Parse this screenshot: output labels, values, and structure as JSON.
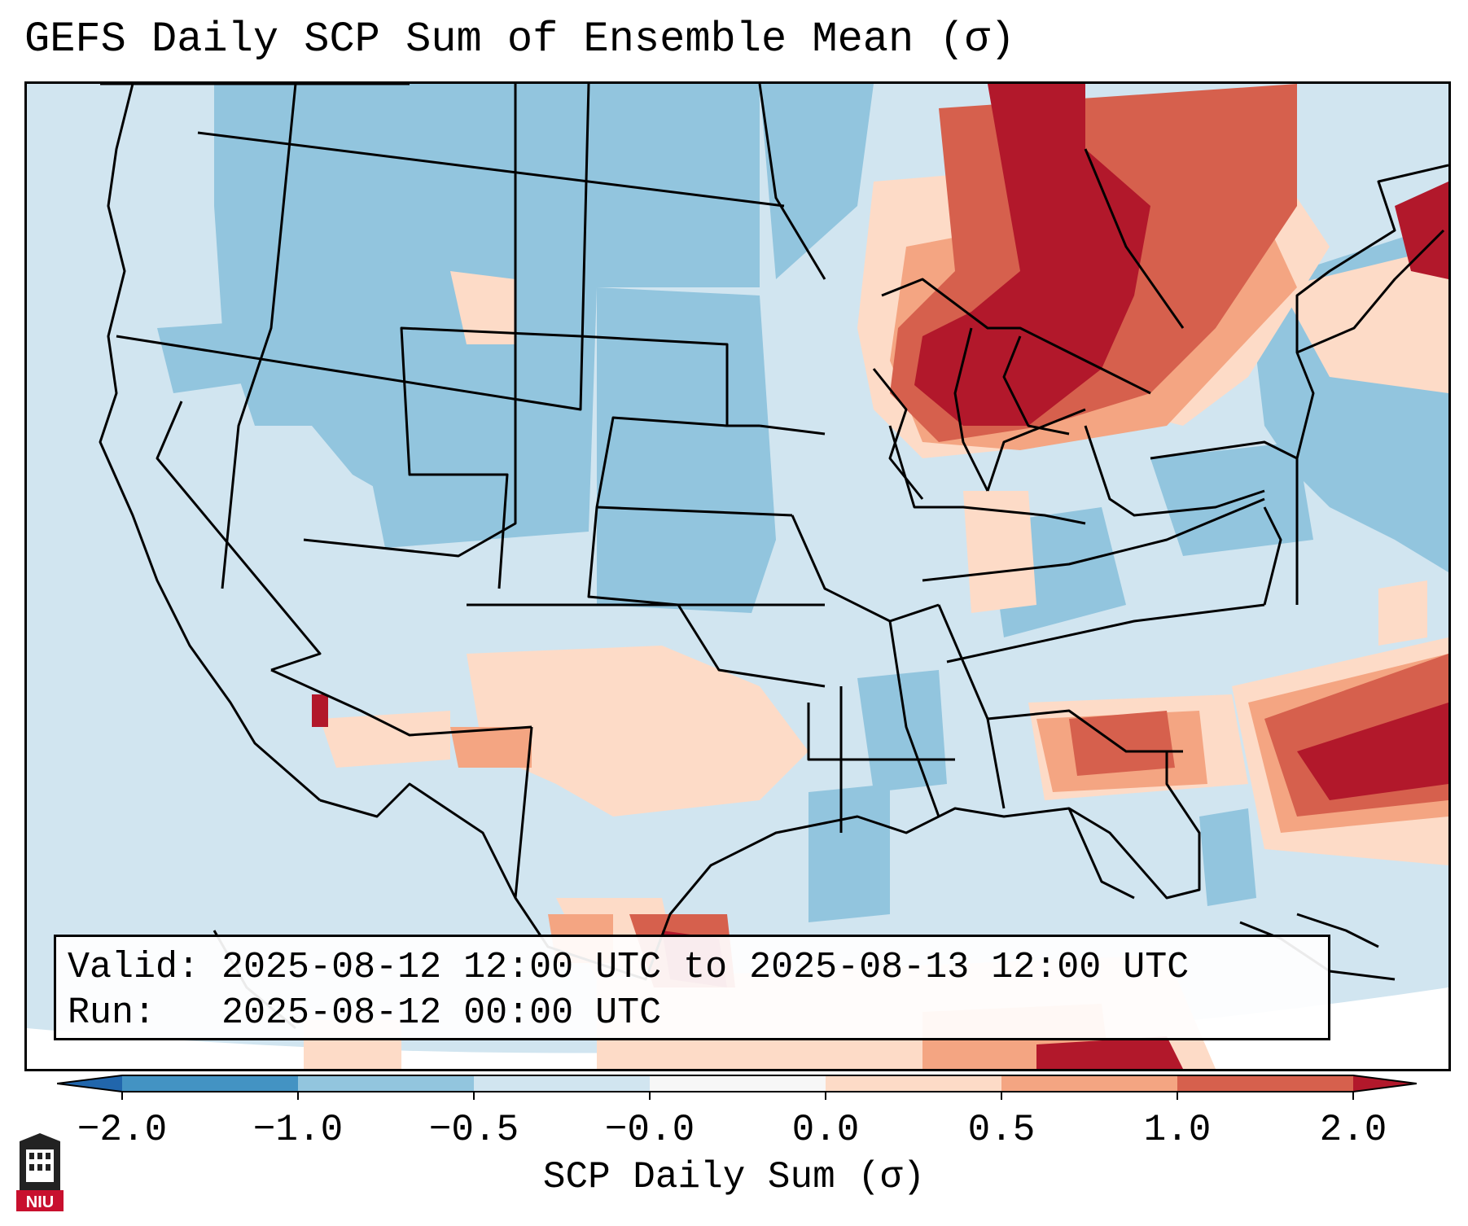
{
  "title": "GEFS Daily SCP Sum of Ensemble Mean (σ)",
  "info": {
    "valid_label": "Valid:",
    "valid_value": "2025-08-12 12:00 UTC to 2025-08-13 12:00 UTC",
    "run_label": "Run:",
    "run_value": "2025-08-12 00:00 UTC"
  },
  "colorbar": {
    "label": "SCP Daily Sum (σ)",
    "ticks": [
      "−2.0",
      "−1.0",
      "−0.5",
      "−0.0",
      "0.0",
      "0.5",
      "1.0",
      "2.0"
    ],
    "colors": [
      "#4393c3",
      "#92c5de",
      "#d1e5f0",
      "#f7f7f7",
      "#fddbc7",
      "#f4a582",
      "#d6604d"
    ],
    "extend_low": "#2166ac",
    "extend_high": "#b2182b"
  },
  "map": {
    "ocean_fill": "#d1e5f0",
    "border_color": "#000000",
    "strong_positive_color": "#b2182b"
  },
  "logo": {
    "text": "NIU",
    "color": "#c8102e"
  }
}
